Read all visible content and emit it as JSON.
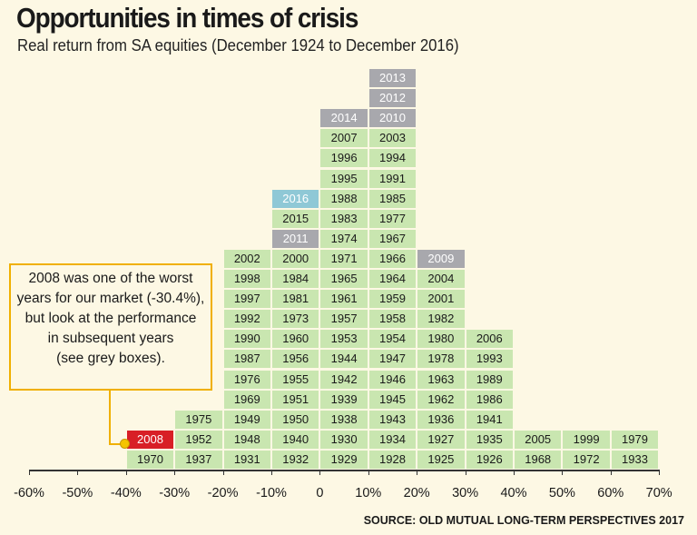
{
  "colors": {
    "normal": "#c9e6b0",
    "grey": "#a8a8ad",
    "blue": "#8fc8d6",
    "red": "#d81f26",
    "callout_border": "#f0b000"
  },
  "chart_data": {
    "type": "table",
    "title": "Opportunities in times of crisis",
    "subtitle": "Real return from SA equities (December 1924 to December 2016)",
    "x_ticks": [
      "-60%",
      "-50%",
      "-40%",
      "-30%",
      "-20%",
      "-10%",
      "0",
      "10%",
      "20%",
      "30%",
      "40%",
      "50%",
      "60%",
      "70%"
    ],
    "x_range": [
      -60,
      70
    ],
    "bins": [
      {
        "range": [
          -40,
          -30
        ],
        "years": [
          {
            "year": "1970",
            "status": "normal"
          },
          {
            "year": "2008",
            "status": "red"
          }
        ]
      },
      {
        "range": [
          -30,
          -20
        ],
        "years": [
          {
            "year": "1937",
            "status": "normal"
          },
          {
            "year": "1952",
            "status": "normal"
          },
          {
            "year": "1975",
            "status": "normal"
          }
        ]
      },
      {
        "range": [
          -20,
          -10
        ],
        "years": [
          {
            "year": "1931",
            "status": "normal"
          },
          {
            "year": "1948",
            "status": "normal"
          },
          {
            "year": "1949",
            "status": "normal"
          },
          {
            "year": "1969",
            "status": "normal"
          },
          {
            "year": "1976",
            "status": "normal"
          },
          {
            "year": "1987",
            "status": "normal"
          },
          {
            "year": "1990",
            "status": "normal"
          },
          {
            "year": "1992",
            "status": "normal"
          },
          {
            "year": "1997",
            "status": "normal"
          },
          {
            "year": "1998",
            "status": "normal"
          },
          {
            "year": "2002",
            "status": "normal"
          }
        ]
      },
      {
        "range": [
          -10,
          0
        ],
        "years": [
          {
            "year": "1932",
            "status": "normal"
          },
          {
            "year": "1940",
            "status": "normal"
          },
          {
            "year": "1950",
            "status": "normal"
          },
          {
            "year": "1951",
            "status": "normal"
          },
          {
            "year": "1955",
            "status": "normal"
          },
          {
            "year": "1956",
            "status": "normal"
          },
          {
            "year": "1960",
            "status": "normal"
          },
          {
            "year": "1973",
            "status": "normal"
          },
          {
            "year": "1981",
            "status": "normal"
          },
          {
            "year": "1984",
            "status": "normal"
          },
          {
            "year": "2000",
            "status": "normal"
          },
          {
            "year": "2011",
            "status": "grey"
          },
          {
            "year": "2015",
            "status": "normal"
          },
          {
            "year": "2016",
            "status": "blue"
          }
        ]
      },
      {
        "range": [
          0,
          10
        ],
        "years": [
          {
            "year": "1929",
            "status": "normal"
          },
          {
            "year": "1930",
            "status": "normal"
          },
          {
            "year": "1938",
            "status": "normal"
          },
          {
            "year": "1939",
            "status": "normal"
          },
          {
            "year": "1942",
            "status": "normal"
          },
          {
            "year": "1944",
            "status": "normal"
          },
          {
            "year": "1953",
            "status": "normal"
          },
          {
            "year": "1957",
            "status": "normal"
          },
          {
            "year": "1961",
            "status": "normal"
          },
          {
            "year": "1965",
            "status": "normal"
          },
          {
            "year": "1971",
            "status": "normal"
          },
          {
            "year": "1974",
            "status": "normal"
          },
          {
            "year": "1983",
            "status": "normal"
          },
          {
            "year": "1988",
            "status": "normal"
          },
          {
            "year": "1995",
            "status": "normal"
          },
          {
            "year": "1996",
            "status": "normal"
          },
          {
            "year": "2007",
            "status": "normal"
          },
          {
            "year": "2014",
            "status": "grey"
          }
        ]
      },
      {
        "range": [
          10,
          20
        ],
        "years": [
          {
            "year": "1928",
            "status": "normal"
          },
          {
            "year": "1934",
            "status": "normal"
          },
          {
            "year": "1943",
            "status": "normal"
          },
          {
            "year": "1945",
            "status": "normal"
          },
          {
            "year": "1946",
            "status": "normal"
          },
          {
            "year": "1947",
            "status": "normal"
          },
          {
            "year": "1954",
            "status": "normal"
          },
          {
            "year": "1958",
            "status": "normal"
          },
          {
            "year": "1959",
            "status": "normal"
          },
          {
            "year": "1964",
            "status": "normal"
          },
          {
            "year": "1966",
            "status": "normal"
          },
          {
            "year": "1967",
            "status": "normal"
          },
          {
            "year": "1977",
            "status": "normal"
          },
          {
            "year": "1985",
            "status": "normal"
          },
          {
            "year": "1991",
            "status": "normal"
          },
          {
            "year": "1994",
            "status": "normal"
          },
          {
            "year": "2003",
            "status": "normal"
          },
          {
            "year": "2010",
            "status": "grey"
          },
          {
            "year": "2012",
            "status": "grey"
          },
          {
            "year": "2013",
            "status": "grey"
          }
        ]
      },
      {
        "range": [
          20,
          30
        ],
        "years": [
          {
            "year": "1925",
            "status": "normal"
          },
          {
            "year": "1927",
            "status": "normal"
          },
          {
            "year": "1936",
            "status": "normal"
          },
          {
            "year": "1962",
            "status": "normal"
          },
          {
            "year": "1963",
            "status": "normal"
          },
          {
            "year": "1978",
            "status": "normal"
          },
          {
            "year": "1980",
            "status": "normal"
          },
          {
            "year": "1982",
            "status": "normal"
          },
          {
            "year": "2001",
            "status": "normal"
          },
          {
            "year": "2004",
            "status": "normal"
          },
          {
            "year": "2009",
            "status": "grey"
          }
        ]
      },
      {
        "range": [
          30,
          40
        ],
        "years": [
          {
            "year": "1926",
            "status": "normal"
          },
          {
            "year": "1935",
            "status": "normal"
          },
          {
            "year": "1941",
            "status": "normal"
          },
          {
            "year": "1986",
            "status": "normal"
          },
          {
            "year": "1989",
            "status": "normal"
          },
          {
            "year": "1993",
            "status": "normal"
          },
          {
            "year": "2006",
            "status": "normal"
          }
        ]
      },
      {
        "range": [
          40,
          50
        ],
        "years": [
          {
            "year": "1968",
            "status": "normal"
          },
          {
            "year": "2005",
            "status": "normal"
          }
        ]
      },
      {
        "range": [
          50,
          60
        ],
        "years": [
          {
            "year": "1972",
            "status": "normal"
          },
          {
            "year": "1999",
            "status": "normal"
          }
        ]
      },
      {
        "range": [
          60,
          70
        ],
        "years": [
          {
            "year": "1933",
            "status": "normal"
          },
          {
            "year": "1979",
            "status": "normal"
          }
        ]
      }
    ],
    "annotation": "2008 was one of the worst years for our market (-30.4%), but look at the performance in subsequent years (see grey boxes).",
    "source": "SOURCE: OLD MUTUAL LONG-TERM PERSPECTIVES 2017"
  },
  "callout": {
    "lines": [
      "2008 was one of the worst",
      "years for our market (-30.4%),",
      "but look at the performance",
      "in subsequent years",
      "(see grey boxes)."
    ]
  }
}
